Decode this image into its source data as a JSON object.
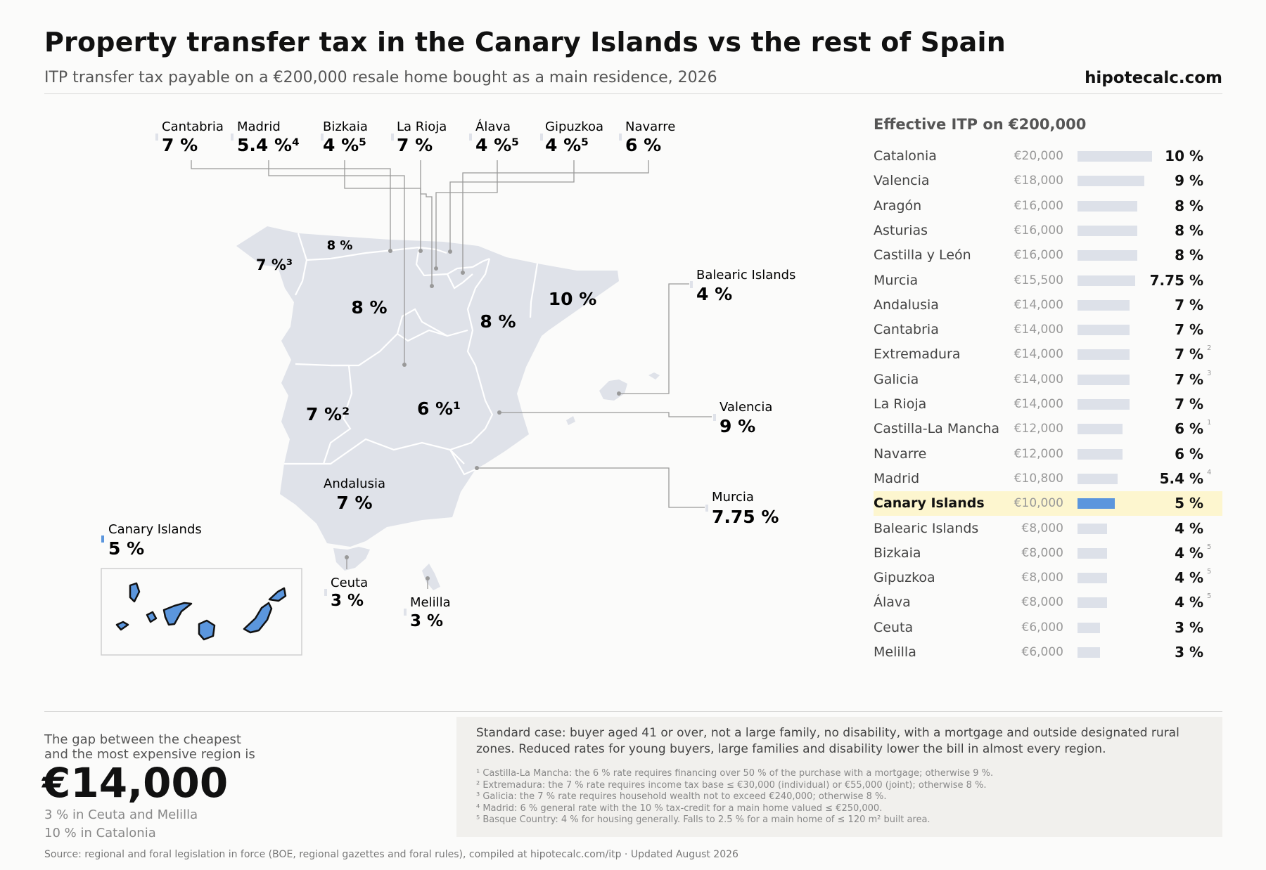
{
  "header": {
    "title": "Property transfer tax in the Canary Islands vs the rest of Spain",
    "subtitle": "ITP transfer tax payable on a €200,000 resale home bought as a main residence, 2026",
    "brand": "hipotecalc.com"
  },
  "map": {
    "callouts": [
      {
        "name": "Cantabria",
        "rate": "7 %"
      },
      {
        "name": "Madrid",
        "rate": "5.4 %⁴"
      },
      {
        "name": "Bizkaia",
        "rate": "4 %⁵"
      },
      {
        "name": "La Rioja",
        "rate": "7 %"
      },
      {
        "name": "Álava",
        "rate": "4 %⁵"
      },
      {
        "name": "Gipuzkoa",
        "rate": "4 %⁵"
      },
      {
        "name": "Navarre",
        "rate": "6 %"
      },
      {
        "name": "Balearic Islands",
        "rate": "4 %"
      },
      {
        "name": "Valencia",
        "rate": "9 %"
      },
      {
        "name": "Murcia",
        "rate": "7.75 %"
      },
      {
        "name": "Andalusia",
        "rate": "7 %"
      },
      {
        "name": "Ceuta",
        "rate": "3 %"
      },
      {
        "name": "Melilla",
        "rate": "3 %"
      },
      {
        "name": "Canary Islands",
        "rate": "5 %"
      }
    ],
    "region_labels": {
      "galicia": "7 %³",
      "asturias": "8 %",
      "castilla_leon": "8 %",
      "aragon": "8 %",
      "catalonia": "10 %",
      "extremadura": "7 %²",
      "castilla_la_mancha": "6 %¹"
    },
    "colors": {
      "land": "#dfe2e9",
      "border": "#ffffff",
      "leader": "#999999",
      "canary": "#5b96dd"
    }
  },
  "chart_data": {
    "type": "bar",
    "title": "Effective ITP on €200,000",
    "highlight": "Canary Islands",
    "categories": [
      "Catalonia",
      "Valencia",
      "Aragón",
      "Asturias",
      "Castilla y León",
      "Murcia",
      "Andalusia",
      "Cantabria",
      "Extremadura",
      "Galicia",
      "La Rioja",
      "Castilla-La Mancha",
      "Navarre",
      "Madrid",
      "Canary Islands",
      "Balearic Islands",
      "Bizkaia",
      "Gipuzkoa",
      "Álava",
      "Ceuta",
      "Melilla"
    ],
    "values": [
      20000,
      18000,
      16000,
      16000,
      16000,
      15500,
      14000,
      14000,
      14000,
      14000,
      14000,
      12000,
      12000,
      10800,
      10000,
      8000,
      8000,
      8000,
      8000,
      6000,
      6000
    ],
    "amount_labels": [
      "€20,000",
      "€18,000",
      "€16,000",
      "€16,000",
      "€16,000",
      "€15,500",
      "€14,000",
      "€14,000",
      "€14,000",
      "€14,000",
      "€14,000",
      "€12,000",
      "€12,000",
      "€10,800",
      "€10,000",
      "€8,000",
      "€8,000",
      "€8,000",
      "€8,000",
      "€6,000",
      "€6,000"
    ],
    "rate_labels": [
      "10 %",
      "9 %",
      "8 %",
      "8 %",
      "8 %",
      "7.75 %",
      "7 %",
      "7 %",
      "7 %",
      "7 %",
      "7 %",
      "6 %",
      "6 %",
      "5.4 %",
      "5 %",
      "4 %",
      "4 %",
      "4 %",
      "4 %",
      "3 %",
      "3 %"
    ],
    "notes": [
      "",
      "",
      "",
      "",
      "",
      "",
      "",
      "",
      "2",
      "3",
      "",
      "1",
      "",
      "4",
      "",
      "",
      "5",
      "5",
      "5",
      "",
      ""
    ],
    "xlim": [
      0,
      20000
    ],
    "colors": {
      "bar": "#dde1e9",
      "highlight_bar": "#5b96dd",
      "highlight_row": "#fdf6cf"
    }
  },
  "gap": {
    "line1": "The gap between the cheapest",
    "line2": "and the most expensive region is",
    "amount": "€14,000",
    "min_line": "3 % in Ceuta and Melilla",
    "max_line": "10 % in Catalonia"
  },
  "notes": {
    "main": "Standard case: buyer aged 41 or over, not a large family, no disability, with a mortgage and outside designated rural zones. Reduced rates for young buyers, large families and disability lower the bill in almost every region.",
    "footnotes": [
      "¹ Castilla-La Mancha: the 6 % rate requires financing over 50 % of the purchase with a mortgage; otherwise 9 %.",
      "² Extremadura: the 7 % rate requires income tax base ≤ €30,000 (individual) or €55,000 (joint); otherwise 8 %.",
      "³ Galicia: the 7 % rate requires household wealth not to exceed €240,000; otherwise 8 %.",
      "⁴ Madrid: 6 % general rate with the 10 % tax-credit for a main home valued ≤ €250,000.",
      "⁵ Basque Country: 4 % for housing generally. Falls to 2.5 % for a main home of ≤ 120 m² built area."
    ]
  },
  "footer": {
    "source": "Source: regional and foral legislation in force (BOE, regional gazettes and foral rules), compiled at hipotecalc.com/itp · Updated August 2026"
  }
}
